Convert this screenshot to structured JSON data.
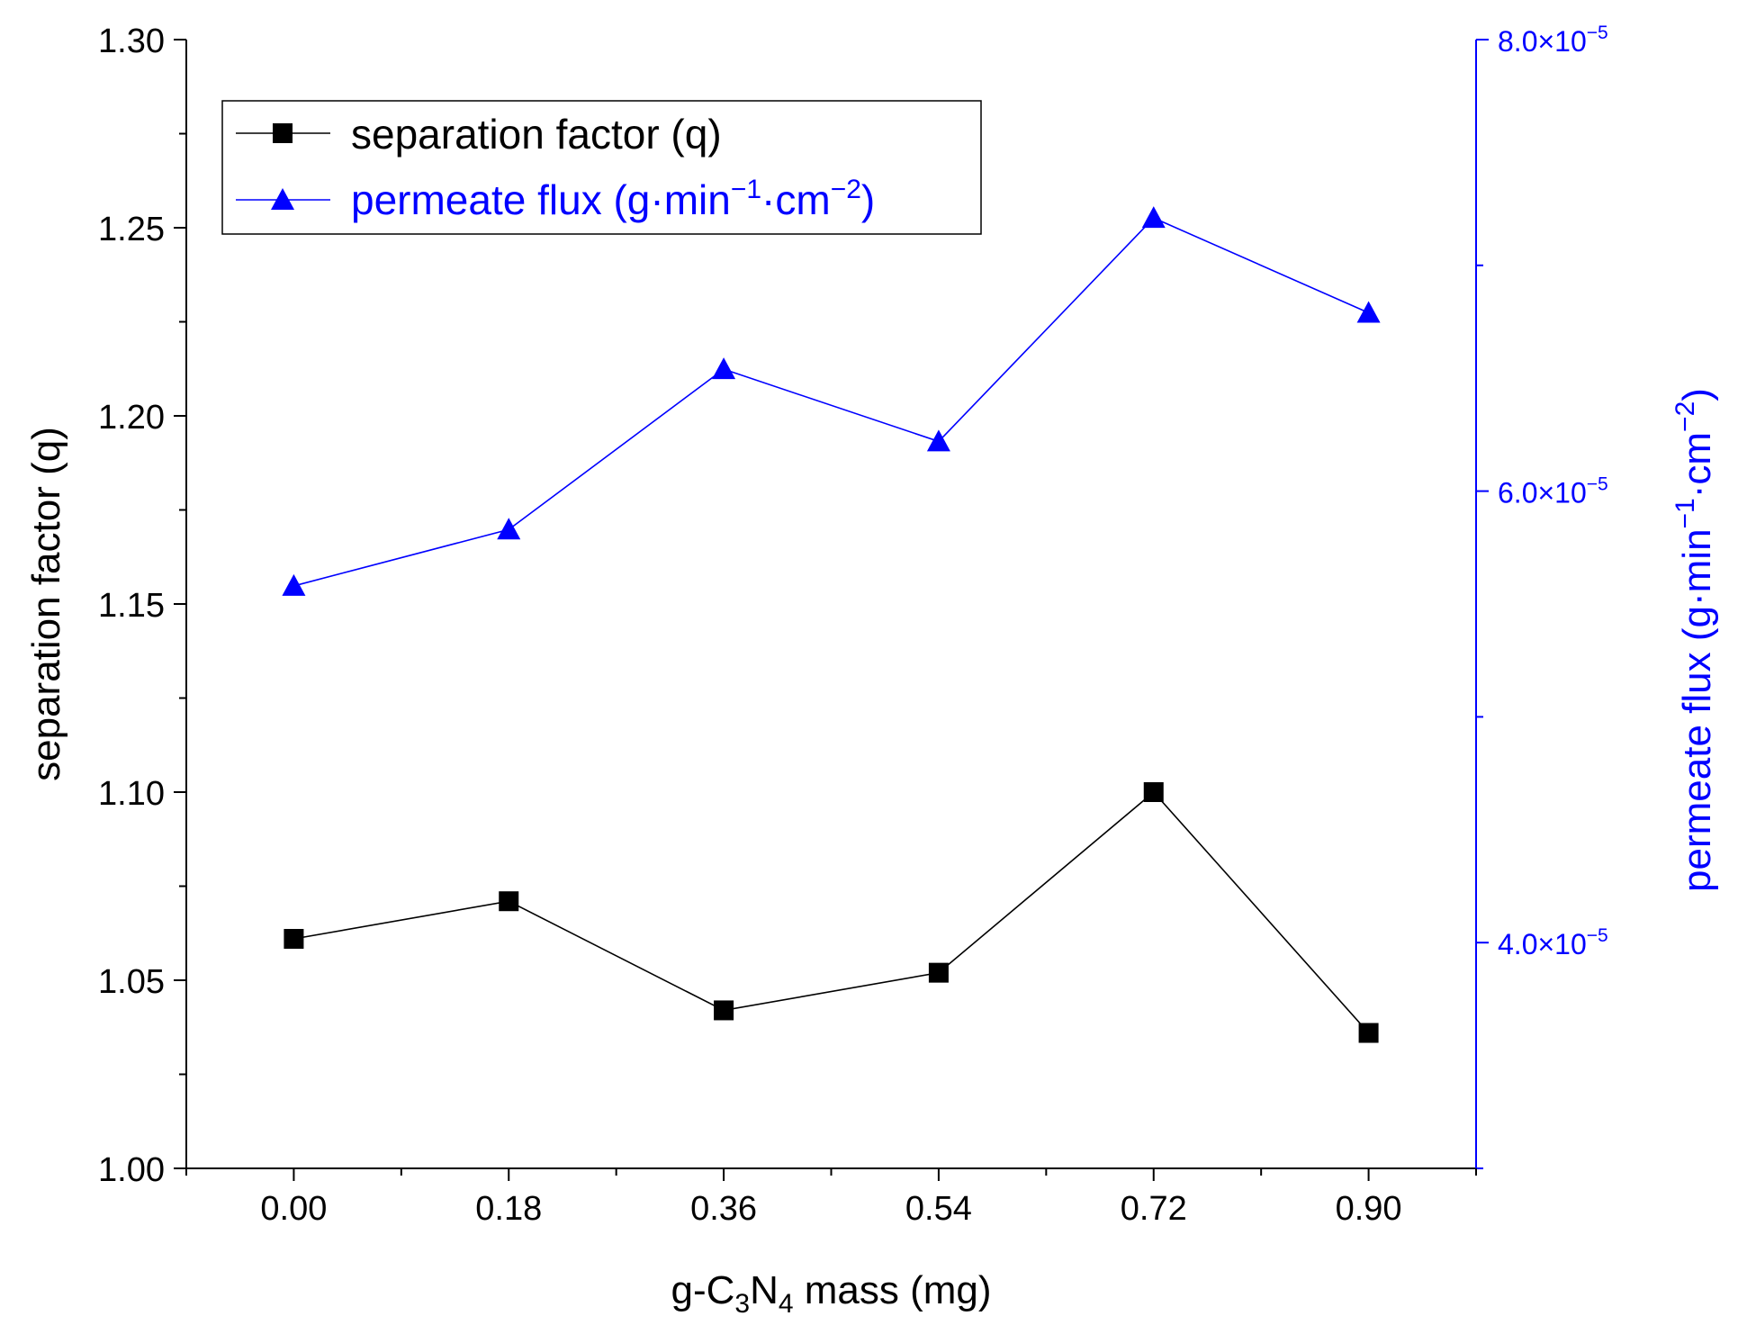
{
  "chart_data": {
    "type": "line",
    "x_label_parts": [
      "g-C",
      "3",
      "N",
      "4",
      " mass (mg)"
    ],
    "y_left_label": "separation factor (q)",
    "y_right_label_parts": [
      "permeate flux (g·min",
      "−1",
      "·cm",
      "−2",
      ")"
    ],
    "x": [
      0.0,
      0.18,
      0.36,
      0.54,
      0.72,
      0.9
    ],
    "x_tick_labels": [
      "0.00",
      "0.18",
      "0.36",
      "0.54",
      "0.72",
      "0.90"
    ],
    "xlim": [
      -0.09,
      0.99
    ],
    "y_left_lim": [
      1.0,
      1.3
    ],
    "y_left_ticks": [
      1.0,
      1.05,
      1.1,
      1.15,
      1.2,
      1.25,
      1.3
    ],
    "y_left_tick_labels": [
      "1.00",
      "1.05",
      "1.10",
      "1.15",
      "1.20",
      "1.25",
      "1.30"
    ],
    "y_right_lim": [
      3e-05,
      8e-05
    ],
    "y_right_ticks": [
      4e-05,
      6e-05,
      8e-05
    ],
    "y_right_tick_labels": [
      {
        "mant": "4.0×10",
        "exp": "−5"
      },
      {
        "mant": "6.0×10",
        "exp": "−5"
      },
      {
        "mant": "8.0×10",
        "exp": "−5"
      }
    ],
    "series": [
      {
        "name": "separation factor (q)",
        "axis": "left",
        "marker": "square",
        "color": "#000000",
        "values": [
          1.061,
          1.071,
          1.042,
          1.052,
          1.1,
          1.036
        ]
      },
      {
        "name_parts": [
          "permeate flux (g·min",
          "−1",
          "·cm",
          "−2",
          ")"
        ],
        "axis": "right",
        "marker": "triangle",
        "color": "#0000ff",
        "values": [
          5.58e-05,
          5.83e-05,
          6.54e-05,
          6.22e-05,
          7.21e-05,
          6.79e-05
        ]
      }
    ],
    "legend_position": "top-left",
    "grid": false
  }
}
